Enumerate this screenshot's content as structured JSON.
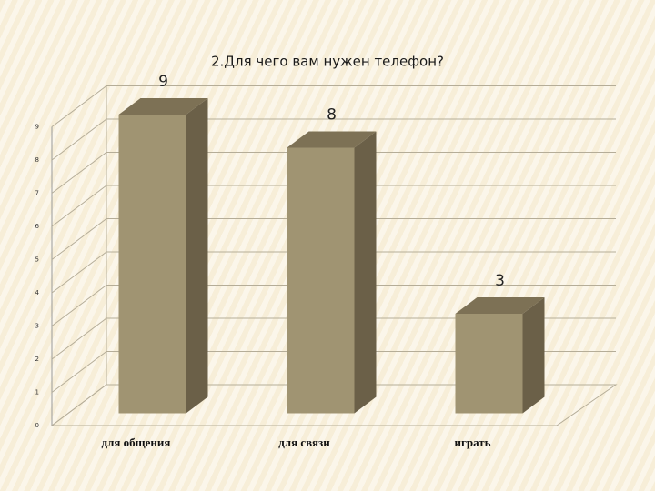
{
  "chart_data": {
    "type": "bar3d",
    "title": "2.Для чего вам нужен телефон?",
    "categories": [
      "для общения",
      "для связи",
      "играть"
    ],
    "values": [
      9,
      8,
      3
    ],
    "color": "#a09472",
    "ylim": [
      0,
      9
    ],
    "yticks": [
      0,
      1,
      2,
      3,
      4,
      5,
      6,
      7,
      8,
      9
    ],
    "grid": true
  }
}
